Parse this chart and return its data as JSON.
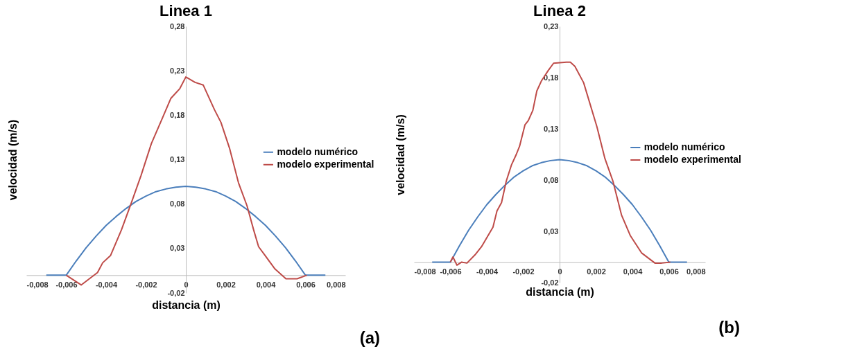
{
  "chart_data": [
    {
      "type": "line",
      "title": "Linea 1",
      "xlabel": "distancia (m)",
      "ylabel": "velocidad (m/s)",
      "legend": "right",
      "annotations": [
        "(a)"
      ],
      "xlim": [
        -0.008,
        0.008
      ],
      "xticks": [
        {
          "value": -0.008,
          "label": "-0,008"
        },
        {
          "value": -0.006,
          "label": "-0,006"
        },
        {
          "value": -0.004,
          "label": "-0,004"
        },
        {
          "value": -0.002,
          "label": "-0,002"
        },
        0,
        {
          "value": 0.002,
          "label": "0,002"
        },
        {
          "value": 0.004,
          "label": "0,004"
        },
        {
          "value": 0.006,
          "label": "0,006"
        },
        {
          "value": 0.008,
          "label": "0,008"
        }
      ],
      "ylim": [
        -0.02,
        0.28
      ],
      "yticks": [
        {
          "value": -0.02,
          "label": "-0,02"
        },
        {
          "value": 0.03,
          "label": "0,03"
        },
        {
          "value": 0.08,
          "label": "0,08"
        },
        {
          "value": 0.13,
          "label": "0,13"
        },
        {
          "value": 0.18,
          "label": "0,18"
        },
        {
          "value": 0.23,
          "label": "0,23"
        },
        {
          "value": 0.28,
          "label": "0,28"
        }
      ],
      "series": [
        {
          "name": "modelo numérico",
          "color": "#4a7ebb",
          "x": [
            -0.007,
            -0.006,
            -0.0055,
            -0.005,
            -0.0045,
            -0.004,
            -0.0035,
            -0.003,
            -0.0025,
            -0.002,
            -0.0015,
            -0.001,
            -0.0005,
            0,
            0.0005,
            0.001,
            0.0015,
            0.002,
            0.0025,
            0.003,
            0.0035,
            0.004,
            0.0045,
            0.005,
            0.0055,
            0.006,
            0.007
          ],
          "values": [
            0,
            0,
            0.016,
            0.031,
            0.044,
            0.056,
            0.066,
            0.075,
            0.083,
            0.089,
            0.094,
            0.097,
            0.099,
            0.1,
            0.099,
            0.097,
            0.094,
            0.089,
            0.083,
            0.075,
            0.066,
            0.056,
            0.044,
            0.031,
            0.016,
            0,
            0
          ]
        },
        {
          "name": "modelo experimental",
          "color": "#be4b48",
          "x": [
            -0.006,
            -0.00525,
            -0.00443,
            -0.00417,
            -0.00378,
            -0.00323,
            -0.00274,
            -0.00225,
            -0.00173,
            -0.00117,
            -0.00075,
            -0.0003,
            0,
            0.00046,
            0.00087,
            0.00144,
            0.00176,
            0.00219,
            0.00264,
            0.00307,
            0.0034,
            0.00365,
            0.00395,
            0.00447,
            0.00502,
            0.00558,
            0.00607
          ],
          "values": [
            0,
            -0.011,
            0.003,
            0.014,
            0.022,
            0.051,
            0.081,
            0.112,
            0.148,
            0.177,
            0.199,
            0.21,
            0.223,
            0.217,
            0.214,
            0.186,
            0.172,
            0.143,
            0.104,
            0.078,
            0.051,
            0.032,
            0.023,
            0.007,
            -0.004,
            -0.004,
            0
          ]
        }
      ]
    },
    {
      "type": "line",
      "title": "Linea 2",
      "xlabel": "distancia (m)",
      "ylabel": "velocidad (m/s)",
      "legend": "right",
      "annotations": [
        "(b)"
      ],
      "xlim": [
        -0.008,
        0.008
      ],
      "xticks": [
        {
          "value": -0.008,
          "label": "-0,008"
        },
        {
          "value": -0.006,
          "label": "-0,006"
        },
        {
          "value": -0.004,
          "label": "-0,004"
        },
        {
          "value": -0.002,
          "label": "-0,002"
        },
        0,
        {
          "value": 0.002,
          "label": "0,002"
        },
        {
          "value": 0.004,
          "label": "0,004"
        },
        {
          "value": 0.006,
          "label": "0,006"
        },
        {
          "value": 0.008,
          "label": "0,008"
        }
      ],
      "ylim": [
        -0.02,
        0.23
      ],
      "yticks": [
        {
          "value": -0.02,
          "label": "-0,02"
        },
        {
          "value": 0.03,
          "label": "0,03"
        },
        {
          "value": 0.08,
          "label": "0,08"
        },
        {
          "value": 0.13,
          "label": "0,13"
        },
        {
          "value": 0.18,
          "label": "0,18"
        },
        {
          "value": 0.23,
          "label": "0,23"
        }
      ],
      "series": [
        {
          "name": "modelo numérico",
          "color": "#4a7ebb",
          "x": [
            -0.007,
            -0.006,
            -0.0055,
            -0.005,
            -0.0045,
            -0.004,
            -0.0035,
            -0.003,
            -0.0025,
            -0.002,
            -0.0015,
            -0.001,
            -0.0005,
            0,
            0.0005,
            0.001,
            0.0015,
            0.002,
            0.0025,
            0.003,
            0.0035,
            0.004,
            0.0045,
            0.005,
            0.0055,
            0.006,
            0.007
          ],
          "values": [
            0,
            0,
            0.016,
            0.031,
            0.044,
            0.056,
            0.066,
            0.075,
            0.083,
            0.089,
            0.094,
            0.097,
            0.099,
            0.1,
            0.099,
            0.097,
            0.094,
            0.089,
            0.083,
            0.075,
            0.066,
            0.056,
            0.044,
            0.031,
            0.016,
            0,
            0
          ]
        },
        {
          "name": "modelo experimental",
          "color": "#be4b48",
          "x": [
            -0.006,
            -0.00586,
            -0.00564,
            -0.00538,
            -0.00509,
            -0.00465,
            -0.00429,
            -0.00366,
            -0.00344,
            -0.00319,
            -0.00293,
            -0.00264,
            -0.00238,
            -0.0022,
            -0.0019,
            -0.00172,
            -0.00147,
            -0.00125,
            -0.00099,
            -0.00062,
            -0.00033,
            0.00037,
            0.00059,
            0.00084,
            0.00132,
            0.00205,
            0.00249,
            0.00293,
            0.0034,
            0.00388,
            0.0045,
            0.00524,
            0.0056,
            0.00608
          ],
          "values": [
            0,
            0.005,
            -0.003,
            0,
            -0.001,
            0.007,
            0.015,
            0.034,
            0.05,
            0.058,
            0.079,
            0.095,
            0.105,
            0.113,
            0.134,
            0.138,
            0.148,
            0.167,
            0.177,
            0.187,
            0.194,
            0.195,
            0.195,
            0.191,
            0.175,
            0.132,
            0.101,
            0.079,
            0.046,
            0.026,
            0.009,
            -0.001,
            -0.001,
            0
          ]
        }
      ]
    }
  ]
}
